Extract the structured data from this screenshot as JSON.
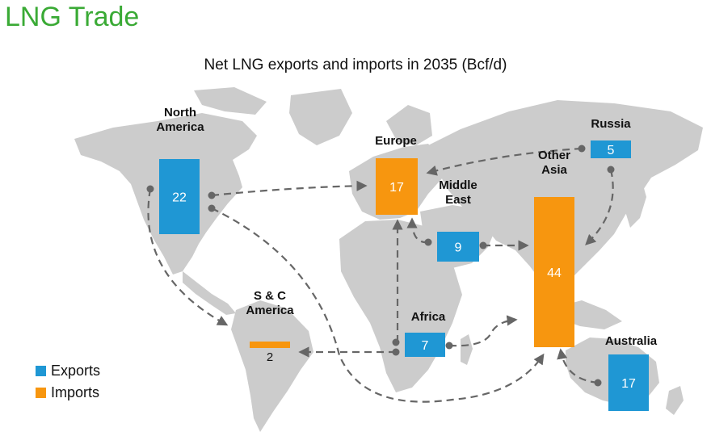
{
  "page_title": "LNG Trade",
  "colors": {
    "exports": "#1f97d4",
    "imports": "#f7960f",
    "map": "#cccccc",
    "title": "#3aaa35"
  },
  "chart_data": {
    "type": "bar",
    "title": "Net LNG exports and imports in 2035 (Bcf/d)",
    "legend": {
      "placement": "bottom-left",
      "entries": [
        "Exports",
        "Imports"
      ]
    },
    "regions": [
      {
        "label_lines": [
          "North",
          "America"
        ],
        "type": "Exports",
        "value": 22
      },
      {
        "label_lines": [
          "Europe"
        ],
        "type": "Imports",
        "value": 17
      },
      {
        "label_lines": [
          "Russia"
        ],
        "type": "Exports",
        "value": 5
      },
      {
        "label_lines": [
          "Middle",
          "East"
        ],
        "type": "Exports",
        "value": 9
      },
      {
        "label_lines": [
          "Other",
          "Asia"
        ],
        "type": "Imports",
        "value": 44
      },
      {
        "label_lines": [
          "S & C",
          "America"
        ],
        "type": "Imports",
        "value": 2
      },
      {
        "label_lines": [
          "Africa"
        ],
        "type": "Exports",
        "value": 7
      },
      {
        "label_lines": [
          "Australia"
        ],
        "type": "Exports",
        "value": 17
      }
    ],
    "flows": [
      {
        "from": "North America",
        "to": "Europe"
      },
      {
        "from": "North America",
        "to": "S & C America"
      },
      {
        "from": "North America",
        "to": "Other Asia"
      },
      {
        "from": "Russia",
        "to": "Europe"
      },
      {
        "from": "Russia",
        "to": "Other Asia"
      },
      {
        "from": "Middle East",
        "to": "Europe"
      },
      {
        "from": "Middle East",
        "to": "Other Asia"
      },
      {
        "from": "Africa",
        "to": "Europe"
      },
      {
        "from": "Africa",
        "to": "S & C America"
      },
      {
        "from": "Africa",
        "to": "Other Asia"
      },
      {
        "from": "Australia",
        "to": "Other Asia"
      }
    ]
  }
}
